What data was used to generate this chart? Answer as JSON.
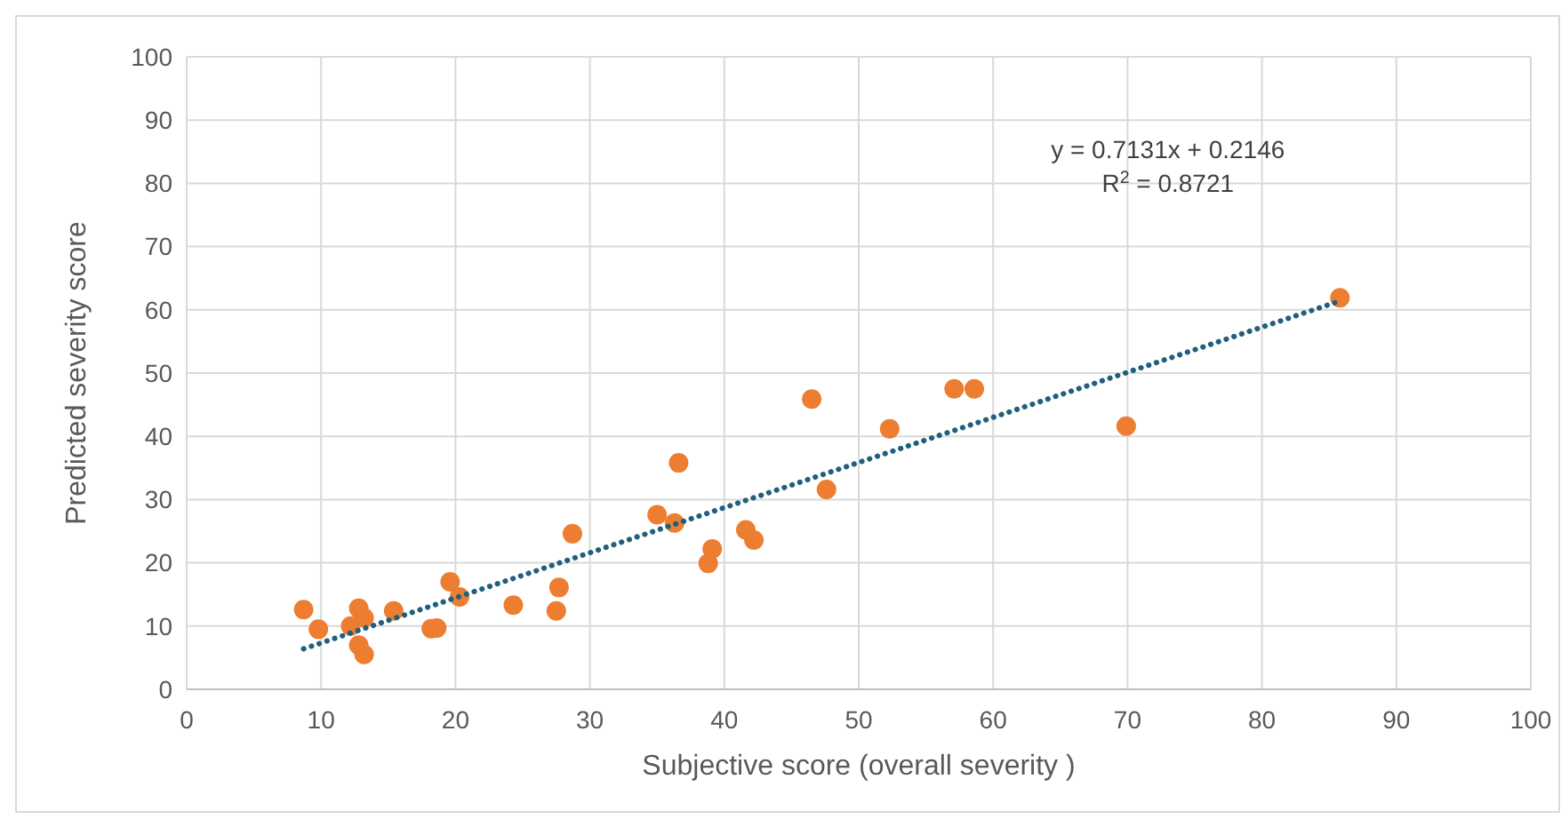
{
  "chart_data": {
    "type": "scatter",
    "xlabel": "Subjective score (overall severity )",
    "ylabel": "Predicted severity score",
    "xlim": [
      0,
      100
    ],
    "xticks": [
      0,
      10,
      20,
      30,
      40,
      50,
      60,
      70,
      80,
      90,
      100
    ],
    "ylim": [
      0,
      100
    ],
    "yticks": [
      0,
      10,
      20,
      30,
      40,
      50,
      60,
      70,
      80,
      90,
      100
    ],
    "grid": true,
    "marker": "circle",
    "annotations": [
      "y = 0.7131x + 0.2146",
      "R$^{2}$ = 0.8721"
    ],
    "series": [
      {
        "color": "#ed7d31",
        "x": [
          8.7,
          9.8,
          12.2,
          12.8,
          13.2,
          12.8,
          13.2,
          15.4,
          18.2,
          18.6,
          19.6,
          20.3,
          24.3,
          27.5,
          27.7,
          28.7,
          35,
          36.3,
          36.6,
          38.8,
          39.1,
          41.6,
          42.2,
          46.5,
          47.6,
          52.3,
          57.1,
          58.6,
          69.9,
          85.8
        ],
        "values": [
          12.6,
          9.5,
          10,
          12.8,
          11.3,
          7,
          5.5,
          12.4,
          9.6,
          9.7,
          17,
          14.6,
          13.3,
          12.4,
          16.1,
          24.6,
          27.6,
          26.3,
          35.8,
          19.9,
          22.2,
          25.2,
          23.6,
          45.9,
          31.6,
          41.2,
          47.5,
          47.5,
          41.6,
          61.9
        ]
      },
      {
        "type": "line",
        "color": "#1f5f7f",
        "line_style": "dotted",
        "marker": "none",
        "x": [
          8.7,
          85.8
        ],
        "values": [
          6.4,
          61.4
        ]
      }
    ]
  }
}
